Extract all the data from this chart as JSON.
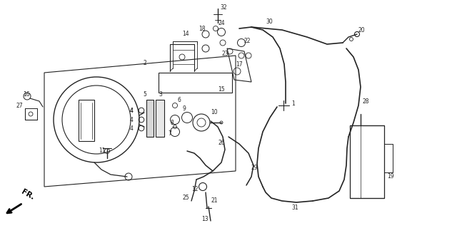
{
  "bg_color": "#ffffff",
  "line_color": "#222222",
  "figsize": [
    6.33,
    3.2
  ],
  "dpi": 100,
  "lfs": 5.5
}
